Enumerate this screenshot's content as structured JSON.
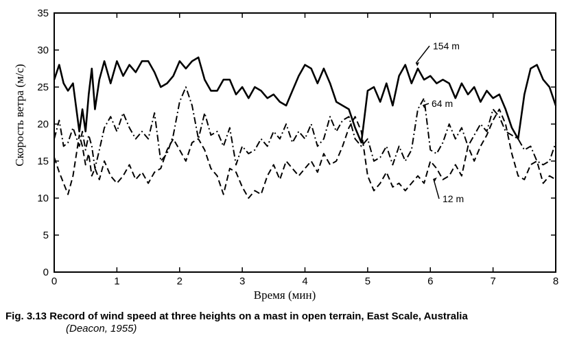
{
  "chart_data": {
    "type": "line",
    "xlabel": "Время (мин)",
    "ylabel": "Скорость ветра (м/с)",
    "xlim": [
      0,
      8
    ],
    "ylim": [
      0,
      35
    ],
    "x_ticks": [
      "0",
      "1",
      "2",
      "3",
      "4",
      "5",
      "6",
      "7",
      "8"
    ],
    "y_ticks": [
      "0",
      "5",
      "10",
      "15",
      "20",
      "25",
      "30",
      "35"
    ],
    "grid": false,
    "series": [
      {
        "name": "154 m",
        "style": "solid",
        "x": [
          0,
          0.08,
          0.15,
          0.22,
          0.3,
          0.4,
          0.45,
          0.5,
          0.55,
          0.6,
          0.65,
          0.72,
          0.8,
          0.9,
          1.0,
          1.1,
          1.2,
          1.3,
          1.4,
          1.5,
          1.6,
          1.7,
          1.8,
          1.9,
          2.0,
          2.1,
          2.2,
          2.3,
          2.4,
          2.5,
          2.6,
          2.7,
          2.8,
          2.9,
          3.0,
          3.1,
          3.2,
          3.3,
          3.4,
          3.5,
          3.6,
          3.7,
          3.8,
          3.9,
          4.0,
          4.1,
          4.2,
          4.3,
          4.4,
          4.5,
          4.6,
          4.7,
          4.8,
          4.9,
          5.0,
          5.1,
          5.2,
          5.3,
          5.4,
          5.5,
          5.6,
          5.7,
          5.8,
          5.9,
          6.0,
          6.1,
          6.2,
          6.3,
          6.4,
          6.5,
          6.6,
          6.7,
          6.8,
          6.9,
          7.0,
          7.1,
          7.2,
          7.3,
          7.4,
          7.5,
          7.6,
          7.7,
          7.8,
          7.9,
          8.0
        ],
        "values": [
          26,
          28,
          25.5,
          24.5,
          25.5,
          19,
          22,
          19,
          24,
          27.5,
          22,
          26,
          28.5,
          25.5,
          28.5,
          26.5,
          28,
          27,
          28.5,
          28.5,
          27,
          25,
          25.5,
          26.5,
          28.5,
          27.5,
          28.5,
          29,
          26,
          24.5,
          24.5,
          26,
          26,
          24,
          25,
          23.5,
          25,
          24.5,
          23.5,
          24,
          23,
          22.5,
          24.5,
          26.5,
          28,
          27.5,
          25.5,
          27.5,
          25.5,
          23,
          22.5,
          22,
          19.5,
          17.5,
          24.5,
          25,
          23,
          25.5,
          22.5,
          26.5,
          28,
          25.5,
          27.5,
          26,
          26.5,
          25.5,
          26,
          25.5,
          23.5,
          25.5,
          24,
          25,
          23,
          24.5,
          23.5,
          24,
          22,
          19.5,
          18,
          24,
          27.5,
          28,
          26,
          25,
          22.5
        ]
      },
      {
        "name": "64 m",
        "style": "dash-dot",
        "x": [
          0,
          0.08,
          0.15,
          0.22,
          0.3,
          0.4,
          0.45,
          0.5,
          0.55,
          0.6,
          0.65,
          0.72,
          0.8,
          0.9,
          1.0,
          1.1,
          1.2,
          1.3,
          1.4,
          1.5,
          1.6,
          1.7,
          1.8,
          1.9,
          2.0,
          2.1,
          2.2,
          2.3,
          2.4,
          2.5,
          2.6,
          2.7,
          2.8,
          2.9,
          3.0,
          3.1,
          3.2,
          3.3,
          3.4,
          3.5,
          3.6,
          3.7,
          3.8,
          3.9,
          4.0,
          4.1,
          4.2,
          4.3,
          4.4,
          4.5,
          4.6,
          4.7,
          4.8,
          4.9,
          5.0,
          5.1,
          5.2,
          5.3,
          5.4,
          5.5,
          5.6,
          5.7,
          5.8,
          5.9,
          6.0,
          6.1,
          6.2,
          6.3,
          6.4,
          6.5,
          6.6,
          6.7,
          6.8,
          6.9,
          7.0,
          7.1,
          7.2,
          7.3,
          7.4,
          7.5,
          7.6,
          7.7,
          7.8,
          7.9,
          8.0
        ],
        "values": [
          18,
          20.5,
          17,
          17.5,
          19.5,
          17,
          19,
          16.5,
          18.5,
          17,
          14,
          16.5,
          19.5,
          21,
          19,
          21.5,
          19.5,
          18,
          19,
          18,
          21.5,
          15,
          16,
          18.5,
          23,
          25,
          22.5,
          18,
          21.5,
          18.5,
          19,
          17,
          19.5,
          14.5,
          17,
          16,
          16.5,
          18,
          17,
          19,
          18,
          20,
          17.5,
          19,
          18,
          20,
          17,
          18,
          21,
          19,
          20.5,
          21,
          18,
          17,
          18,
          15,
          15.5,
          17,
          14.5,
          17,
          15,
          16.5,
          22,
          23.5,
          16.5,
          16,
          17.5,
          20,
          18,
          19.5,
          17,
          18.5,
          20,
          19,
          22,
          21,
          19,
          18.5,
          18,
          16.5,
          17,
          15,
          14.5,
          15,
          17.5
        ]
      },
      {
        "name": "12 m",
        "style": "dashed",
        "x": [
          0,
          0.08,
          0.15,
          0.22,
          0.3,
          0.4,
          0.45,
          0.5,
          0.55,
          0.6,
          0.65,
          0.72,
          0.8,
          0.9,
          1.0,
          1.1,
          1.2,
          1.3,
          1.4,
          1.5,
          1.6,
          1.7,
          1.8,
          1.9,
          2.0,
          2.1,
          2.2,
          2.3,
          2.4,
          2.5,
          2.6,
          2.7,
          2.8,
          2.9,
          3.0,
          3.1,
          3.2,
          3.3,
          3.4,
          3.5,
          3.6,
          3.7,
          3.8,
          3.9,
          4.0,
          4.1,
          4.2,
          4.3,
          4.4,
          4.5,
          4.6,
          4.7,
          4.8,
          4.9,
          5.0,
          5.1,
          5.2,
          5.3,
          5.4,
          5.5,
          5.6,
          5.7,
          5.8,
          5.9,
          6.0,
          6.1,
          6.2,
          6.3,
          6.4,
          6.5,
          6.6,
          6.7,
          6.8,
          6.9,
          7.0,
          7.1,
          7.2,
          7.3,
          7.4,
          7.5,
          7.6,
          7.7,
          7.8,
          7.9,
          8.0
        ],
        "values": [
          15.5,
          13.5,
          12,
          10.5,
          13,
          18.5,
          17,
          14.5,
          16,
          13,
          14,
          12.5,
          15,
          13,
          12,
          13,
          14.5,
          12.5,
          13.5,
          12,
          13.5,
          14,
          16.5,
          18,
          16.5,
          15,
          17.5,
          18,
          16.5,
          14,
          13,
          10.5,
          14,
          13.5,
          11.5,
          10,
          11,
          10.5,
          13,
          14.5,
          12.5,
          15,
          14,
          13,
          14,
          15,
          13.5,
          16,
          14.5,
          15,
          17,
          19.5,
          21,
          19,
          13,
          11,
          12,
          13.5,
          11.5,
          12,
          11,
          12,
          13,
          12,
          15,
          14,
          12.5,
          13,
          14.5,
          13,
          17,
          15,
          17,
          18.5,
          20.5,
          22,
          20,
          16,
          13,
          12.5,
          14.5,
          15,
          12,
          13,
          12.5
        ]
      }
    ],
    "annotations": [
      "154 m",
      "64 m",
      "12 m"
    ]
  },
  "caption": {
    "figure": "Fig. 3.13 Record of wind speed at three heights on a mast in open terrain, East Scale, Australia",
    "citation": "(Deacon, 1955)"
  },
  "colors": {
    "line": "#000000",
    "background": "#ffffff"
  }
}
